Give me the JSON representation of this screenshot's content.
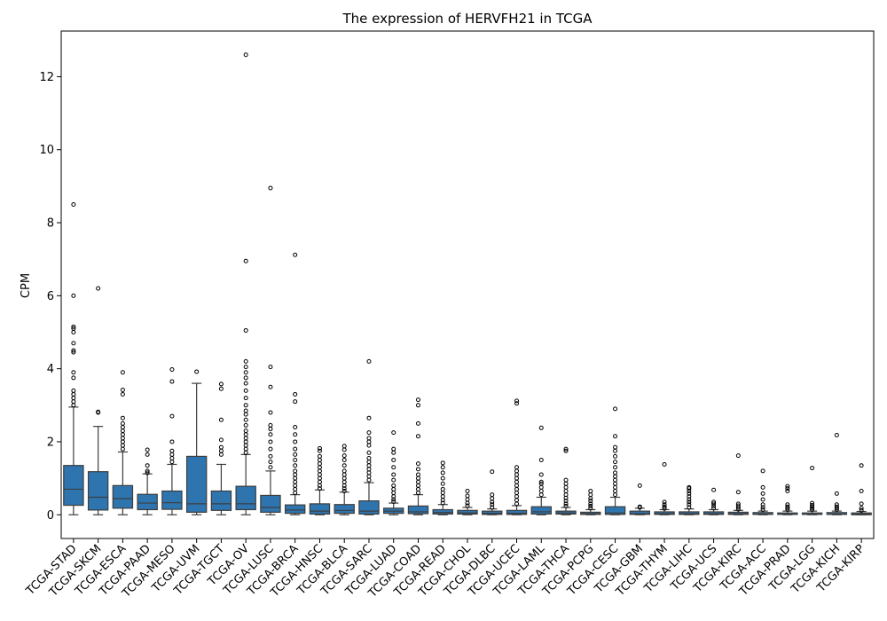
{
  "chart_data": {
    "type": "box",
    "title": "The expression of HERVFH21 in TCGA",
    "xlabel": "",
    "ylabel": "CPM",
    "ylim": [
      -0.65,
      13.25
    ],
    "yticks": [
      0,
      2,
      4,
      6,
      8,
      10,
      12
    ],
    "box_color": "#2e75b0",
    "grid": false,
    "categories": [
      "TCGA-STAD",
      "TCGA-SKCM",
      "TCGA-ESCA",
      "TCGA-PAAD",
      "TCGA-MESO",
      "TCGA-UVM",
      "TCGA-TGCT",
      "TCGA-OV",
      "TCGA-LUSC",
      "TCGA-BRCA",
      "TCGA-HNSC",
      "TCGA-BLCA",
      "TCGA-SARC",
      "TCGA-LUAD",
      "TCGA-COAD",
      "TCGA-READ",
      "TCGA-CHOL",
      "TCGA-DLBC",
      "TCGA-UCEC",
      "TCGA-LAML",
      "TCGA-THCA",
      "TCGA-PCPG",
      "TCGA-CESC",
      "TCGA-GBM",
      "TCGA-THYM",
      "TCGA-LIHC",
      "TCGA-UCS",
      "TCGA-KIRC",
      "TCGA-ACC",
      "TCGA-PRAD",
      "TCGA-LGG",
      "TCGA-KICH",
      "TCGA-KIRP"
    ],
    "boxes": [
      {
        "min": 0.0,
        "q1": 0.26,
        "median": 0.7,
        "q3": 1.35,
        "max": 2.95,
        "outliers": [
          3.0,
          3.1,
          3.2,
          3.3,
          3.4,
          3.75,
          3.9,
          4.45,
          4.5,
          4.7,
          5.0,
          5.1,
          5.15,
          6.0,
          8.5
        ]
      },
      {
        "min": 0.0,
        "q1": 0.13,
        "median": 0.48,
        "q3": 1.18,
        "max": 2.42,
        "outliers": [
          2.8,
          2.82,
          6.2
        ]
      },
      {
        "min": 0.0,
        "q1": 0.18,
        "median": 0.44,
        "q3": 0.8,
        "max": 1.72,
        "outliers": [
          1.8,
          1.9,
          2.0,
          2.1,
          2.2,
          2.3,
          2.4,
          2.5,
          2.65,
          3.3,
          3.42,
          3.9
        ]
      },
      {
        "min": 0.0,
        "q1": 0.14,
        "median": 0.32,
        "q3": 0.56,
        "max": 1.12,
        "outliers": [
          1.15,
          1.2,
          1.35,
          1.65,
          1.78
        ]
      },
      {
        "min": 0.0,
        "q1": 0.15,
        "median": 0.33,
        "q3": 0.65,
        "max": 1.38,
        "outliers": [
          1.45,
          1.55,
          1.65,
          1.75,
          2.0,
          2.7,
          3.65,
          3.98
        ]
      },
      {
        "min": 0.0,
        "q1": 0.07,
        "median": 0.3,
        "q3": 1.6,
        "max": 3.6,
        "outliers": [
          3.92
        ]
      },
      {
        "min": 0.0,
        "q1": 0.12,
        "median": 0.3,
        "q3": 0.65,
        "max": 1.38,
        "outliers": [
          1.65,
          1.75,
          1.85,
          2.05,
          2.6,
          3.45,
          3.58
        ]
      },
      {
        "min": 0.0,
        "q1": 0.14,
        "median": 0.3,
        "q3": 0.78,
        "max": 1.65,
        "outliers": [
          1.7,
          1.8,
          1.9,
          2.0,
          2.1,
          2.2,
          2.3,
          2.45,
          2.6,
          2.75,
          2.85,
          3.0,
          3.2,
          3.4,
          3.6,
          3.75,
          3.9,
          4.05,
          4.2,
          5.05,
          6.95,
          12.6
        ]
      },
      {
        "min": 0.0,
        "q1": 0.07,
        "median": 0.2,
        "q3": 0.53,
        "max": 1.2,
        "outliers": [
          1.3,
          1.45,
          1.6,
          1.8,
          2.0,
          2.2,
          2.35,
          2.45,
          2.8,
          3.5,
          4.05,
          8.95
        ]
      },
      {
        "min": 0.0,
        "q1": 0.04,
        "median": 0.13,
        "q3": 0.27,
        "max": 0.55,
        "outliers": [
          0.6,
          0.7,
          0.8,
          0.9,
          1.0,
          1.1,
          1.2,
          1.35,
          1.5,
          1.65,
          1.8,
          2.0,
          2.2,
          2.4,
          3.1,
          3.3,
          7.12
        ]
      },
      {
        "min": 0.0,
        "q1": 0.02,
        "median": 0.1,
        "q3": 0.3,
        "max": 0.68,
        "outliers": [
          0.72,
          0.8,
          0.9,
          1.0,
          1.1,
          1.2,
          1.3,
          1.4,
          1.5,
          1.6,
          1.75,
          1.82
        ]
      },
      {
        "min": 0.0,
        "q1": 0.04,
        "median": 0.12,
        "q3": 0.28,
        "max": 0.62,
        "outliers": [
          0.65,
          0.72,
          0.8,
          0.9,
          1.0,
          1.1,
          1.2,
          1.35,
          1.5,
          1.62,
          1.78,
          1.88
        ]
      },
      {
        "min": 0.0,
        "q1": 0.02,
        "median": 0.1,
        "q3": 0.38,
        "max": 0.88,
        "outliers": [
          0.95,
          1.05,
          1.15,
          1.25,
          1.35,
          1.45,
          1.55,
          1.7,
          1.9,
          2.0,
          2.1,
          2.25,
          2.65,
          4.2
        ]
      },
      {
        "min": 0.0,
        "q1": 0.04,
        "median": 0.1,
        "q3": 0.18,
        "max": 0.32,
        "outliers": [
          0.36,
          0.42,
          0.5,
          0.6,
          0.7,
          0.8,
          0.95,
          1.1,
          1.3,
          1.5,
          1.7,
          1.8,
          2.25
        ]
      },
      {
        "min": 0.0,
        "q1": 0.03,
        "median": 0.08,
        "q3": 0.24,
        "max": 0.55,
        "outliers": [
          0.6,
          0.7,
          0.8,
          0.9,
          1.0,
          1.1,
          1.25,
          1.4,
          2.15,
          2.5,
          3.0,
          3.15
        ]
      },
      {
        "min": 0.0,
        "q1": 0.02,
        "median": 0.06,
        "q3": 0.14,
        "max": 0.28,
        "outliers": [
          0.32,
          0.4,
          0.5,
          0.6,
          0.7,
          0.85,
          1.0,
          1.15,
          1.3,
          1.42
        ]
      },
      {
        "min": 0.0,
        "q1": 0.02,
        "median": 0.05,
        "q3": 0.12,
        "max": 0.2,
        "outliers": [
          0.25,
          0.32,
          0.42,
          0.52,
          0.65
        ]
      },
      {
        "min": 0.0,
        "q1": 0.01,
        "median": 0.04,
        "q3": 0.1,
        "max": 0.16,
        "outliers": [
          0.2,
          0.28,
          0.35,
          0.45,
          0.55,
          1.18
        ]
      },
      {
        "min": 0.0,
        "q1": 0.01,
        "median": 0.04,
        "q3": 0.12,
        "max": 0.25,
        "outliers": [
          0.3,
          0.4,
          0.5,
          0.6,
          0.7,
          0.8,
          0.9,
          1.0,
          1.1,
          1.2,
          1.3,
          3.05,
          3.12
        ]
      },
      {
        "min": 0.0,
        "q1": 0.02,
        "median": 0.08,
        "q3": 0.22,
        "max": 0.48,
        "outliers": [
          0.55,
          0.65,
          0.75,
          0.85,
          0.9,
          1.1,
          1.5,
          2.38
        ]
      },
      {
        "min": 0.0,
        "q1": 0.02,
        "median": 0.05,
        "q3": 0.1,
        "max": 0.2,
        "outliers": [
          0.24,
          0.3,
          0.38,
          0.46,
          0.55,
          0.65,
          0.75,
          0.85,
          0.95,
          1.75,
          1.8
        ]
      },
      {
        "min": 0.0,
        "q1": 0.01,
        "median": 0.03,
        "q3": 0.07,
        "max": 0.14,
        "outliers": [
          0.18,
          0.24,
          0.3,
          0.38,
          0.45,
          0.55,
          0.65
        ]
      },
      {
        "min": 0.0,
        "q1": 0.01,
        "median": 0.05,
        "q3": 0.22,
        "max": 0.48,
        "outliers": [
          0.55,
          0.65,
          0.75,
          0.85,
          0.95,
          1.05,
          1.15,
          1.3,
          1.45,
          1.6,
          1.75,
          1.85,
          2.15,
          2.9
        ]
      },
      {
        "min": 0.0,
        "q1": 0.01,
        "median": 0.03,
        "q3": 0.1,
        "max": 0.18,
        "outliers": [
          0.2,
          0.22,
          0.8
        ]
      },
      {
        "min": 0.0,
        "q1": 0.01,
        "median": 0.03,
        "q3": 0.08,
        "max": 0.14,
        "outliers": [
          0.17,
          0.22,
          0.28,
          0.35,
          1.38
        ]
      },
      {
        "min": 0.0,
        "q1": 0.01,
        "median": 0.03,
        "q3": 0.08,
        "max": 0.16,
        "outliers": [
          0.2,
          0.28,
          0.35,
          0.42,
          0.5,
          0.58,
          0.65,
          0.72,
          0.75
        ]
      },
      {
        "min": 0.0,
        "q1": 0.01,
        "median": 0.03,
        "q3": 0.08,
        "max": 0.14,
        "outliers": [
          0.18,
          0.24,
          0.3,
          0.35,
          0.68
        ]
      },
      {
        "min": 0.0,
        "q1": 0.01,
        "median": 0.03,
        "q3": 0.07,
        "max": 0.12,
        "outliers": [
          0.15,
          0.2,
          0.25,
          0.3,
          0.62,
          1.62
        ]
      },
      {
        "min": 0.0,
        "q1": 0.01,
        "median": 0.02,
        "q3": 0.06,
        "max": 0.1,
        "outliers": [
          0.14,
          0.2,
          0.28,
          0.42,
          0.58,
          0.75,
          1.2
        ]
      },
      {
        "min": 0.0,
        "q1": 0.01,
        "median": 0.02,
        "q3": 0.05,
        "max": 0.1,
        "outliers": [
          0.14,
          0.18,
          0.22,
          0.28,
          0.65,
          0.72,
          0.78
        ]
      },
      {
        "min": 0.0,
        "q1": 0.01,
        "median": 0.02,
        "q3": 0.05,
        "max": 0.1,
        "outliers": [
          0.14,
          0.18,
          0.22,
          0.26,
          0.32,
          1.28
        ]
      },
      {
        "min": 0.0,
        "q1": 0.01,
        "median": 0.02,
        "q3": 0.06,
        "max": 0.1,
        "outliers": [
          0.14,
          0.18,
          0.22,
          0.28,
          0.58,
          2.18
        ]
      },
      {
        "min": 0.0,
        "q1": 0.0,
        "median": 0.02,
        "q3": 0.05,
        "max": 0.09,
        "outliers": [
          0.12,
          0.18,
          0.3,
          0.65,
          1.35
        ]
      }
    ]
  }
}
